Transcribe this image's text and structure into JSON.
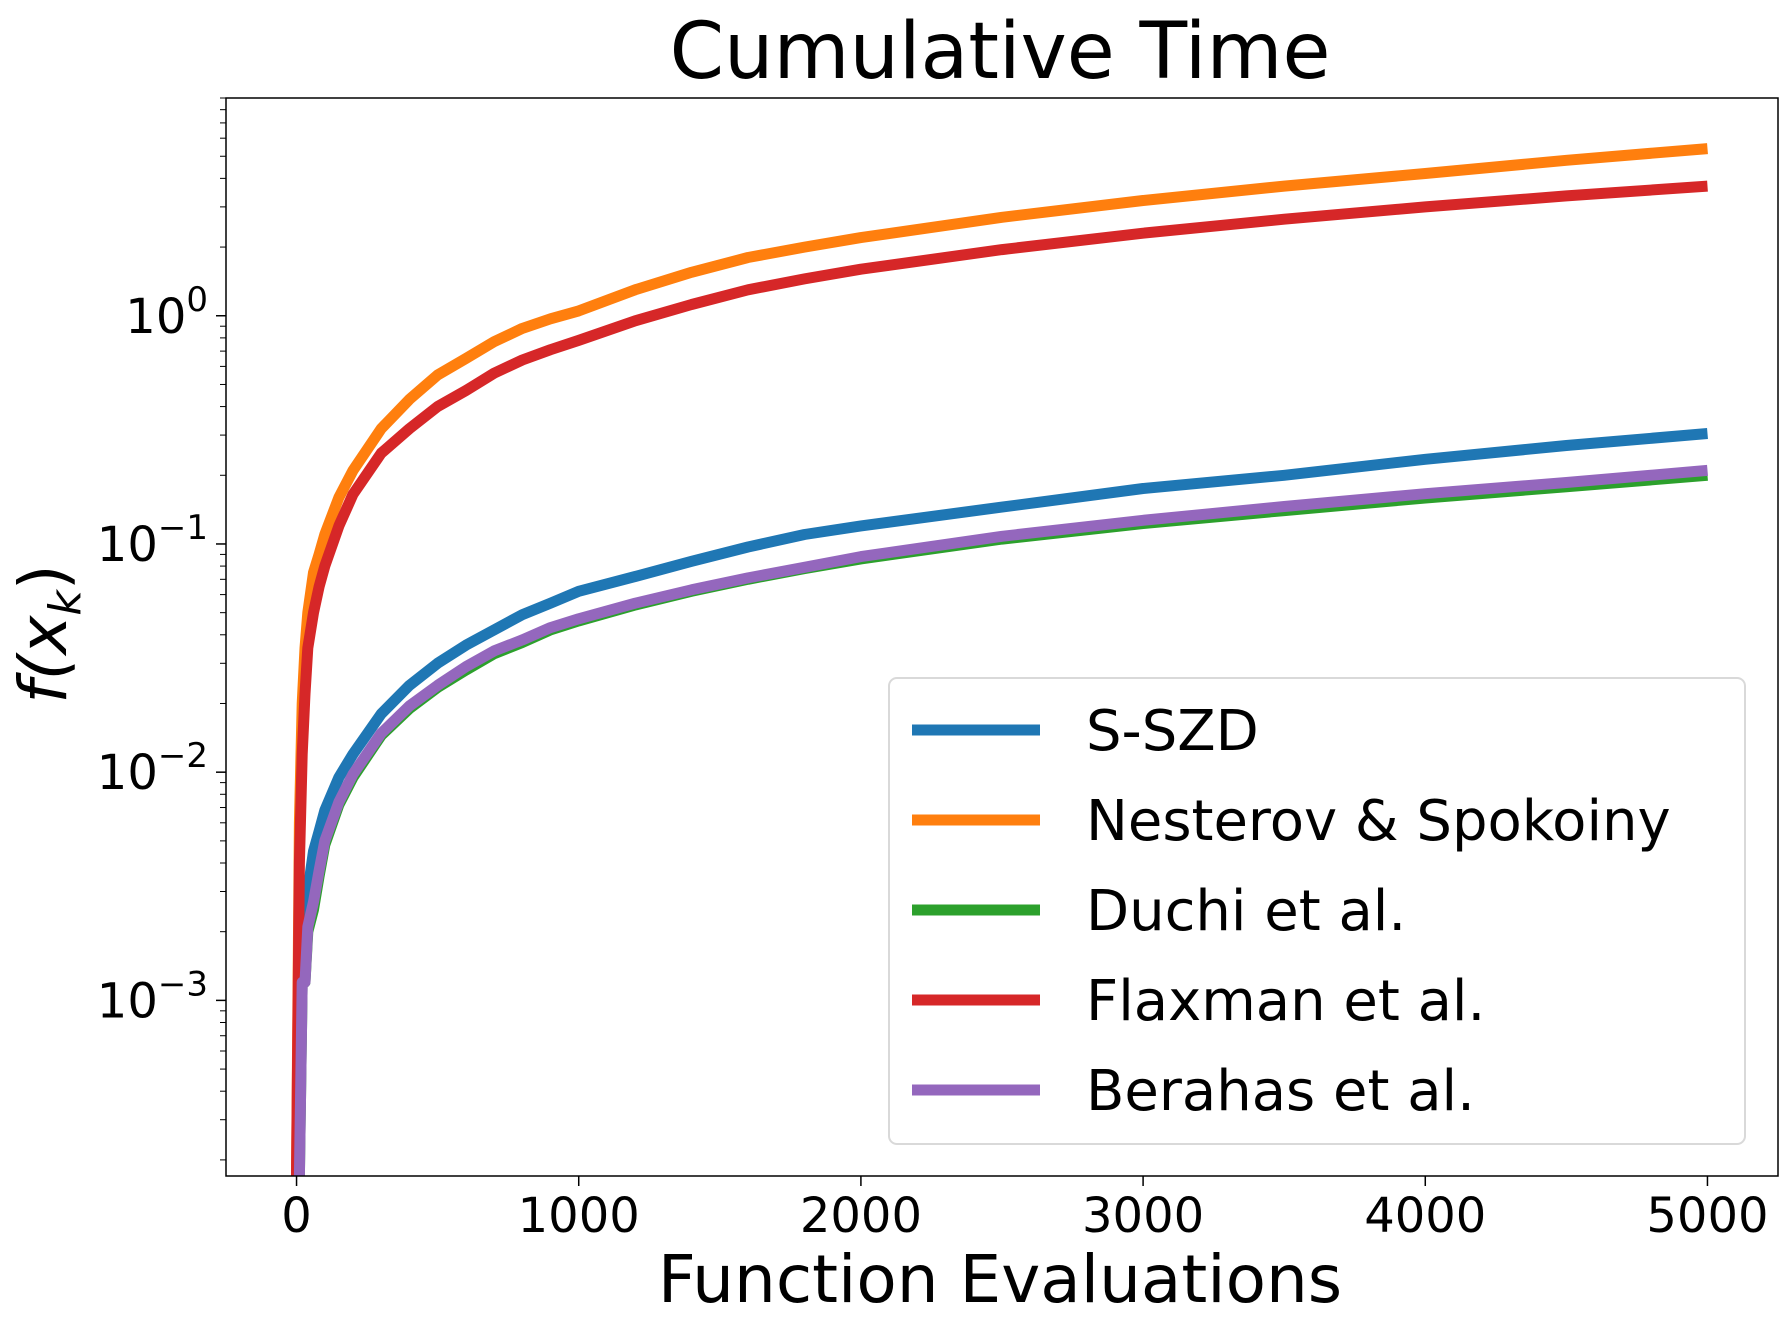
{
  "chart_data": {
    "type": "line",
    "title": "Cumulative Time",
    "xlabel": "Function Evaluations",
    "ylabel": "f(x_k)",
    "ylabel_parts": {
      "main": "f(x",
      "sub": "k",
      "close": ")"
    },
    "x_scale": "linear",
    "y_scale": "log",
    "xlim": [
      -250,
      5250
    ],
    "ylim": [
      0.00017,
      9
    ],
    "x_ticks": [
      0,
      1000,
      2000,
      3000,
      4000,
      5000
    ],
    "x_tick_labels": [
      "0",
      "1000",
      "2000",
      "3000",
      "4000",
      "5000"
    ],
    "y_ticks": [
      {
        "value": 1,
        "base": "10",
        "exp": "0"
      },
      {
        "value": 0.1,
        "base": "10",
        "exp": "−1"
      },
      {
        "value": 0.01,
        "base": "10",
        "exp": "−2"
      },
      {
        "value": 0.001,
        "base": "10",
        "exp": "−3"
      }
    ],
    "grid": false,
    "legend_position": "lower right",
    "x": [
      0,
      10,
      20,
      30,
      40,
      60,
      80,
      100,
      150,
      200,
      300,
      400,
      500,
      600,
      700,
      800,
      900,
      1000,
      1200,
      1400,
      1600,
      1800,
      2000,
      2500,
      3000,
      3500,
      4000,
      4500,
      5000
    ],
    "series": [
      {
        "name": "S-SZD",
        "color": "#1f77b4",
        "values": [
          0.00017,
          0.0006,
          0.0013,
          0.0025,
          0.003,
          0.0045,
          0.0055,
          0.0068,
          0.0095,
          0.012,
          0.018,
          0.024,
          0.03,
          0.036,
          0.042,
          0.049,
          0.055,
          0.062,
          0.072,
          0.084,
          0.097,
          0.11,
          0.12,
          0.145,
          0.175,
          0.2,
          0.235,
          0.27,
          0.305
        ]
      },
      {
        "name": "Nesterov & Spokoiny",
        "color": "#ff7f0e",
        "values": [
          0.00017,
          0.006,
          0.02,
          0.035,
          0.05,
          0.075,
          0.09,
          0.11,
          0.16,
          0.21,
          0.32,
          0.43,
          0.55,
          0.65,
          0.77,
          0.88,
          0.97,
          1.05,
          1.3,
          1.55,
          1.8,
          2.0,
          2.2,
          2.7,
          3.2,
          3.7,
          4.2,
          4.8,
          5.4
        ]
      },
      {
        "name": "Duchi et al.",
        "color": "#2ca02c",
        "values": [
          0.00017,
          0.00017,
          0.0012,
          0.0012,
          0.002,
          0.0025,
          0.0035,
          0.0048,
          0.0072,
          0.0095,
          0.0145,
          0.019,
          0.0235,
          0.028,
          0.033,
          0.037,
          0.042,
          0.046,
          0.054,
          0.062,
          0.07,
          0.078,
          0.086,
          0.105,
          0.123,
          0.14,
          0.159,
          0.178,
          0.2
        ]
      },
      {
        "name": "Flaxman et al.",
        "color": "#d62728",
        "values": [
          0.00017,
          0.004,
          0.012,
          0.022,
          0.035,
          0.05,
          0.065,
          0.08,
          0.12,
          0.165,
          0.25,
          0.32,
          0.4,
          0.47,
          0.56,
          0.64,
          0.71,
          0.78,
          0.95,
          1.12,
          1.3,
          1.45,
          1.6,
          1.95,
          2.3,
          2.65,
          3.0,
          3.35,
          3.7
        ]
      },
      {
        "name": "Berahas et al.",
        "color": "#9467bd",
        "values": [
          0.00017,
          0.00017,
          0.0012,
          0.0012,
          0.0021,
          0.0027,
          0.0037,
          0.005,
          0.0074,
          0.0098,
          0.0148,
          0.0195,
          0.024,
          0.029,
          0.034,
          0.038,
          0.043,
          0.047,
          0.055,
          0.063,
          0.071,
          0.079,
          0.088,
          0.108,
          0.127,
          0.146,
          0.166,
          0.186,
          0.21
        ]
      }
    ]
  }
}
